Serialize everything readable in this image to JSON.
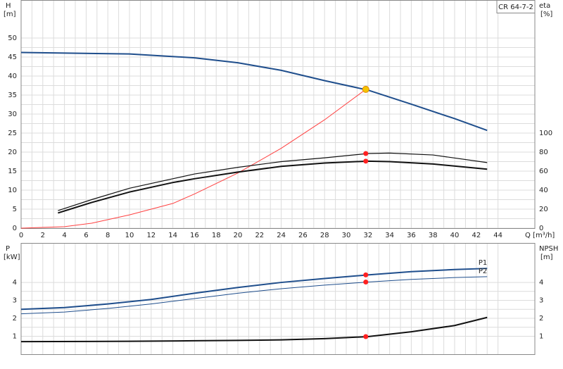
{
  "chart_data": [
    {
      "type": "line",
      "title": "CR 64-7-2",
      "ylabel": "H",
      "yunit": "[m]",
      "y2label": "eta",
      "y2unit": "[%]",
      "xlabel": "Q [m³/h]",
      "xlim": [
        0,
        47.4
      ],
      "xticks": [
        0,
        2,
        4,
        6,
        8,
        10,
        12,
        14,
        16,
        18,
        20,
        22,
        24,
        26,
        28,
        30,
        32,
        34,
        36,
        38,
        40,
        42,
        44
      ],
      "ylim": [
        0,
        60
      ],
      "yticks": [
        0,
        5,
        10,
        15,
        20,
        25,
        30,
        35,
        40,
        45,
        50
      ],
      "y2lim": [
        0,
        240
      ],
      "y2ticks": [
        0,
        20,
        40,
        60,
        80,
        100
      ],
      "grid": true,
      "series": [
        {
          "color": "#1f4e8c",
          "width": 2,
          "x": [
            0,
            10,
            16,
            20,
            24,
            28,
            32,
            36,
            40,
            43
          ],
          "values": [
            46.2,
            45.8,
            44.8,
            43.5,
            41.5,
            38.8,
            36.3,
            32.6,
            28.8,
            25.7
          ]
        },
        {
          "color": "#ff4040",
          "width": 1,
          "x": [
            0,
            4,
            6.5,
            10,
            14,
            16,
            20,
            24,
            28,
            31.8
          ],
          "values": [
            0,
            0.4,
            1.3,
            3.5,
            6.5,
            9,
            14.5,
            21,
            28.5,
            36.5
          ]
        },
        {
          "color": "#111111",
          "width": 1.2,
          "axis": "y2",
          "x": [
            3.4,
            6.5,
            10,
            14,
            16,
            20,
            24,
            28,
            32,
            34,
            38,
            43
          ],
          "values": [
            18.5,
            30,
            42,
            52,
            57,
            64,
            70,
            74,
            78.5,
            79,
            77,
            69
          ]
        },
        {
          "color": "#111111",
          "width": 2,
          "axis": "y2",
          "x": [
            3.4,
            6.5,
            10,
            14,
            16,
            20,
            24,
            28,
            32,
            34,
            38,
            43
          ],
          "values": [
            16,
            27,
            38,
            48,
            52,
            59,
            65,
            68.5,
            70.5,
            70,
            67.5,
            62
          ]
        }
      ],
      "markers": [
        {
          "x": 31.8,
          "y": 36.5,
          "color": "#f5c400"
        },
        {
          "x": 31.8,
          "y": 78.5,
          "color": "#ff2020",
          "axis": "y2"
        },
        {
          "x": 31.8,
          "y": 70.5,
          "color": "#ff2020",
          "axis": "y2"
        }
      ]
    },
    {
      "type": "line",
      "ylabel": "P",
      "yunit": "[kW]",
      "y2label": "NPSH",
      "y2unit": "[m]",
      "xlim": [
        0,
        47.4
      ],
      "xticks": [
        0,
        2,
        4,
        6,
        8,
        10,
        12,
        14,
        16,
        18,
        20,
        22,
        24,
        26,
        28,
        30,
        32,
        34,
        36,
        38,
        40,
        42,
        44
      ],
      "ylim": [
        0,
        6.2
      ],
      "yticks": [
        1,
        2,
        3,
        4
      ],
      "y2lim": [
        0,
        6.2
      ],
      "y2ticks": [
        1,
        2,
        3,
        4
      ],
      "grid": true,
      "series": [
        {
          "name": "P1",
          "color": "#1f4e8c",
          "width": 2,
          "x": [
            0,
            4,
            8,
            12,
            16,
            20,
            24,
            28,
            32,
            36,
            40,
            43
          ],
          "values": [
            2.5,
            2.6,
            2.8,
            3.05,
            3.4,
            3.72,
            4.0,
            4.22,
            4.42,
            4.6,
            4.72,
            4.78
          ]
        },
        {
          "name": "P2",
          "color": "#1f4e8c",
          "width": 1,
          "x": [
            0,
            4,
            8,
            12,
            16,
            20,
            24,
            28,
            32,
            36,
            40,
            43
          ],
          "values": [
            2.25,
            2.35,
            2.55,
            2.8,
            3.1,
            3.4,
            3.65,
            3.85,
            4.02,
            4.17,
            4.27,
            4.32
          ]
        },
        {
          "color": "#111111",
          "width": 2,
          "axis": "y2",
          "x": [
            0,
            10,
            16,
            20,
            24,
            28,
            32,
            36,
            40,
            43
          ],
          "values": [
            0.7,
            0.72,
            0.75,
            0.77,
            0.8,
            0.87,
            0.98,
            1.25,
            1.6,
            2.05
          ]
        }
      ],
      "markers": [
        {
          "x": 31.8,
          "y": 4.42,
          "color": "#ff2020"
        },
        {
          "x": 31.8,
          "y": 4.02,
          "color": "#ff2020"
        },
        {
          "x": 31.8,
          "y": 0.98,
          "color": "#ff2020",
          "axis": "y2"
        }
      ]
    }
  ]
}
